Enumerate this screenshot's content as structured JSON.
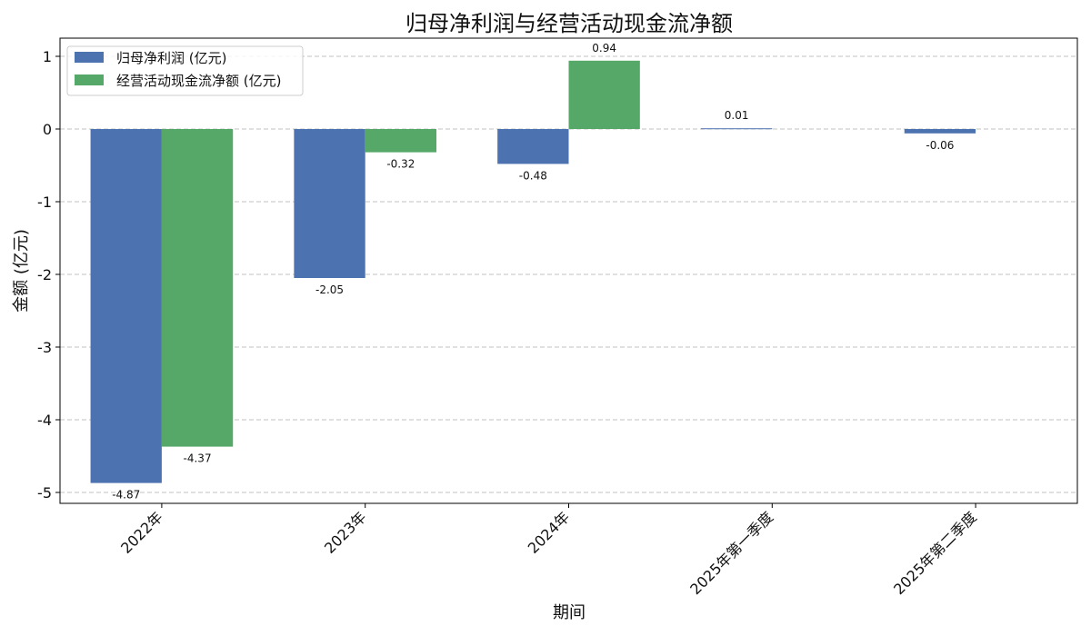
{
  "chart_data": {
    "type": "bar",
    "title": "归母净利润与经营活动现金流净额",
    "xlabel": "期间",
    "ylabel": "金额 (亿元)",
    "categories": [
      "2022年",
      "2023年",
      "2024年",
      "2025年第一季度",
      "2025年第二季度"
    ],
    "ylim": [
      -5.15,
      1.25
    ],
    "yticks": [
      1,
      0,
      -1,
      -2,
      -3,
      -4,
      -5
    ],
    "ytick_labels": [
      "1",
      "0",
      "-1",
      "-2",
      "-3",
      "-4",
      "-5"
    ],
    "grid": true,
    "legend_position": "top-left",
    "series": [
      {
        "name": "归母净利润 (亿元)",
        "color": "#4c72b0",
        "values": [
          -4.87,
          -2.05,
          -0.48,
          0.01,
          -0.06
        ],
        "labels": [
          "-4.87",
          "-2.05",
          "-0.48",
          "0.01",
          "-0.06"
        ]
      },
      {
        "name": "经营活动现金流净额 (亿元)",
        "color": "#55a868",
        "values": [
          -4.37,
          -0.32,
          0.94,
          null,
          null
        ],
        "labels": [
          "-4.37",
          "-0.32",
          "0.94",
          null,
          null
        ]
      }
    ]
  }
}
